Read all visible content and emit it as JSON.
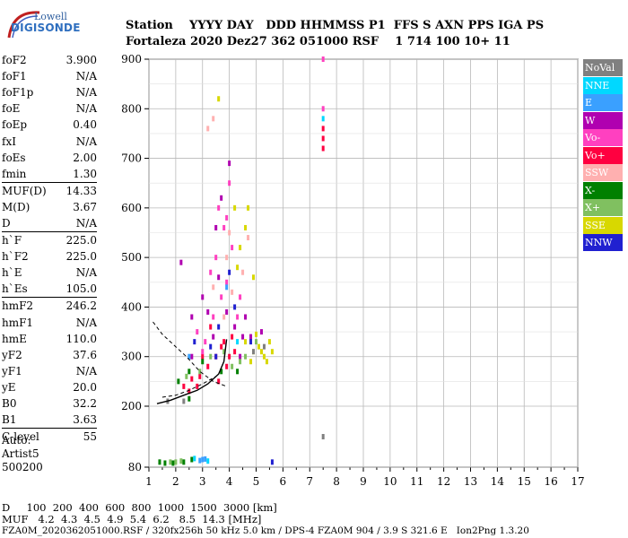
{
  "logo": {
    "line1": "Lowell",
    "line2": "DIGISONDE"
  },
  "header": {
    "line1": "Station    YYYY DAY   DDD HHMMSS P1  FFS S AXN PPS IGA PS",
    "line2": "Fortaleza 2020 Dez27 362 051000 RSF    1 714 100 10+ 11"
  },
  "params": [
    [
      {
        "label": "foF2",
        "value": "3.900"
      },
      {
        "label": "foF1",
        "value": "N/A"
      },
      {
        "label": "foF1p",
        "value": "N/A"
      },
      {
        "label": "foE",
        "value": "N/A"
      },
      {
        "label": "foEp",
        "value": "0.40"
      },
      {
        "label": "fxI",
        "value": "N/A"
      },
      {
        "label": "foEs",
        "value": "2.00"
      },
      {
        "label": "fmin",
        "value": "1.30"
      }
    ],
    [
      {
        "label": "MUF(D)",
        "value": "14.33"
      },
      {
        "label": "M(D)",
        "value": "3.67"
      },
      {
        "label": "D",
        "value": "N/A"
      }
    ],
    [
      {
        "label": "h`F",
        "value": "225.0"
      },
      {
        "label": "h`F2",
        "value": "225.0"
      },
      {
        "label": "h`E",
        "value": "N/A"
      },
      {
        "label": "h`Es",
        "value": "105.0"
      }
    ],
    [
      {
        "label": "hmF2",
        "value": "246.2"
      },
      {
        "label": "hmF1",
        "value": "N/A"
      },
      {
        "label": "hmE",
        "value": "110.0"
      },
      {
        "label": "yF2",
        "value": "37.6"
      },
      {
        "label": "yF1",
        "value": "N/A"
      },
      {
        "label": "yE",
        "value": "20.0"
      },
      {
        "label": "B0",
        "value": "32.2"
      },
      {
        "label": "B1",
        "value": "3.63"
      }
    ],
    [
      {
        "label": "C-level",
        "value": "55"
      }
    ]
  ],
  "auto": {
    "line1": "Auto:",
    "line2": "Artist5",
    "line3": "500200"
  },
  "legend": [
    {
      "label": "NoVal",
      "color": "#808080"
    },
    {
      "label": "NNE",
      "color": "#00d8ff"
    },
    {
      "label": "E",
      "color": "#3aa0ff"
    },
    {
      "label": "W",
      "color": "#b000b0"
    },
    {
      "label": "Vo-",
      "color": "#ff40c0"
    },
    {
      "label": "Vo+",
      "color": "#ff0040"
    },
    {
      "label": "SSW",
      "color": "#ffb0b0"
    },
    {
      "label": "X-",
      "color": "#008000"
    },
    {
      "label": "X+",
      "color": "#80c060"
    },
    {
      "label": "SSE",
      "color": "#d8d800"
    },
    {
      "label": "NNW",
      "color": "#2020d0"
    }
  ],
  "footer": {
    "line1": "D     100  200  400  600  800  1000  1500  3000 [km]",
    "line2": "MUF   4.2  4.3  4.5  4.9  5.4  6.2   8.5  14.3 [MHz]",
    "file": "FZA0M_2020362051000.RSF / 320fx256h 50 kHz 5.0 km / DPS-4 FZA0M 904 / 3.9 S 321.6 E   Ion2Png 1.3.20"
  },
  "chart_data": {
    "type": "scatter",
    "title": "",
    "xlabel": "",
    "ylabel": "",
    "xlim": [
      1,
      17
    ],
    "ylim": [
      80,
      900
    ],
    "x_ticks": [
      1,
      2,
      3,
      4,
      5,
      6,
      7,
      8,
      9,
      10,
      11,
      12,
      13,
      14,
      15,
      16,
      17
    ],
    "y_ticks": [
      80,
      200,
      300,
      400,
      500,
      600,
      700,
      800,
      900
    ],
    "grid": true,
    "legend_position": "right",
    "trace_curve": {
      "x": [
        1.3,
        1.8,
        2.3,
        2.8,
        3.2,
        3.6,
        3.8,
        3.9
      ],
      "y": [
        205,
        212,
        222,
        232,
        245,
        265,
        290,
        335
      ]
    },
    "dashed_curves": [
      {
        "x": [
          1.15,
          1.5,
          2.0,
          2.4,
          2.9,
          3.4,
          3.9
        ],
        "y": [
          370,
          345,
          320,
          300,
          270,
          250,
          240
        ]
      },
      {
        "x": [
          1.5,
          2.0,
          2.5,
          3.0,
          3.5
        ],
        "y": [
          218,
          222,
          232,
          245,
          260
        ]
      }
    ],
    "series": [
      {
        "color": "#ff0040",
        "points": [
          [
            2.3,
            240
          ],
          [
            2.6,
            255
          ],
          [
            2.9,
            260
          ],
          [
            3.2,
            280
          ],
          [
            3.5,
            300
          ],
          [
            3.7,
            320
          ],
          [
            3.8,
            330
          ],
          [
            4.0,
            300
          ],
          [
            4.1,
            340
          ],
          [
            3.3,
            360
          ],
          [
            3.6,
            250
          ],
          [
            2.5,
            230
          ],
          [
            2.8,
            240
          ],
          [
            3.0,
            300
          ],
          [
            3.9,
            280
          ],
          [
            4.2,
            310
          ],
          [
            7.5,
            720
          ],
          [
            7.5,
            740
          ],
          [
            7.5,
            760
          ]
        ]
      },
      {
        "color": "#ff40c0",
        "points": [
          [
            3.1,
            330
          ],
          [
            3.4,
            380
          ],
          [
            3.7,
            420
          ],
          [
            3.9,
            450
          ],
          [
            3.5,
            500
          ],
          [
            3.8,
            560
          ],
          [
            4.1,
            520
          ],
          [
            3.3,
            470
          ],
          [
            2.8,
            350
          ],
          [
            3.0,
            310
          ],
          [
            4.3,
            380
          ],
          [
            4.0,
            650
          ],
          [
            3.6,
            600
          ],
          [
            3.9,
            580
          ],
          [
            4.4,
            420
          ],
          [
            7.5,
            800
          ],
          [
            7.5,
            900
          ]
        ]
      },
      {
        "color": "#b000b0",
        "points": [
          [
            2.6,
            300
          ],
          [
            3.0,
            420
          ],
          [
            3.4,
            340
          ],
          [
            3.6,
            460
          ],
          [
            3.9,
            390
          ],
          [
            4.2,
            360
          ],
          [
            4.5,
            340
          ],
          [
            4.6,
            380
          ],
          [
            3.2,
            390
          ],
          [
            3.7,
            620
          ],
          [
            4.0,
            690
          ],
          [
            3.5,
            560
          ],
          [
            2.2,
            490
          ],
          [
            2.6,
            380
          ],
          [
            4.8,
            340
          ],
          [
            4.4,
            300
          ],
          [
            5.2,
            350
          ]
        ]
      },
      {
        "color": "#d8d800",
        "points": [
          [
            4.6,
            330
          ],
          [
            4.9,
            310
          ],
          [
            5.1,
            320
          ],
          [
            5.3,
            300
          ],
          [
            5.5,
            330
          ],
          [
            4.8,
            290
          ],
          [
            5.0,
            345
          ],
          [
            4.4,
            520
          ],
          [
            4.6,
            560
          ],
          [
            4.3,
            480
          ],
          [
            4.2,
            600
          ],
          [
            4.7,
            600
          ],
          [
            4.9,
            460
          ],
          [
            5.2,
            310
          ],
          [
            5.4,
            290
          ],
          [
            5.6,
            310
          ],
          [
            3.6,
            820
          ]
        ]
      },
      {
        "color": "#80c060",
        "points": [
          [
            2.4,
            260
          ],
          [
            2.9,
            270
          ],
          [
            3.3,
            300
          ],
          [
            4.1,
            280
          ],
          [
            4.6,
            300
          ],
          [
            5.0,
            330
          ],
          [
            3.8,
            310
          ],
          [
            4.4,
            290
          ],
          [
            1.8,
            90
          ],
          [
            2.0,
            90
          ],
          [
            2.2,
            92
          ]
        ]
      },
      {
        "color": "#008000",
        "points": [
          [
            2.1,
            250
          ],
          [
            2.5,
            270
          ],
          [
            3.0,
            290
          ],
          [
            3.7,
            270
          ],
          [
            4.3,
            270
          ],
          [
            1.4,
            90
          ],
          [
            1.6,
            88
          ],
          [
            1.9,
            88
          ],
          [
            2.3,
            90
          ],
          [
            2.6,
            95
          ],
          [
            2.5,
            215
          ]
        ]
      },
      {
        "color": "#ffb0b0",
        "points": [
          [
            3.8,
            380
          ],
          [
            4.1,
            430
          ],
          [
            3.9,
            500
          ],
          [
            4.5,
            470
          ],
          [
            3.4,
            440
          ],
          [
            4.0,
            550
          ],
          [
            4.7,
            540
          ],
          [
            3.2,
            760
          ],
          [
            3.4,
            780
          ]
        ]
      },
      {
        "color": "#2020d0",
        "points": [
          [
            3.6,
            360
          ],
          [
            4.2,
            400
          ],
          [
            3.3,
            320
          ],
          [
            4.0,
            470
          ],
          [
            2.7,
            330
          ],
          [
            5.6,
            90
          ],
          [
            3.5,
            300
          ],
          [
            4.8,
            330
          ]
        ]
      },
      {
        "color": "#3aa0ff",
        "points": [
          [
            3.0,
            95
          ],
          [
            2.9,
            93
          ],
          [
            3.1,
            96
          ],
          [
            2.5,
            300
          ],
          [
            3.9,
            440
          ]
        ]
      },
      {
        "color": "#00d8ff",
        "points": [
          [
            2.7,
            97
          ],
          [
            3.2,
            92
          ],
          [
            4.3,
            330
          ],
          [
            7.5,
            780
          ]
        ]
      },
      {
        "color": "#808080",
        "points": [
          [
            4.9,
            310
          ],
          [
            5.3,
            320
          ],
          [
            7.5,
            140
          ],
          [
            1.7,
            210
          ],
          [
            2.3,
            210
          ]
        ]
      }
    ]
  }
}
